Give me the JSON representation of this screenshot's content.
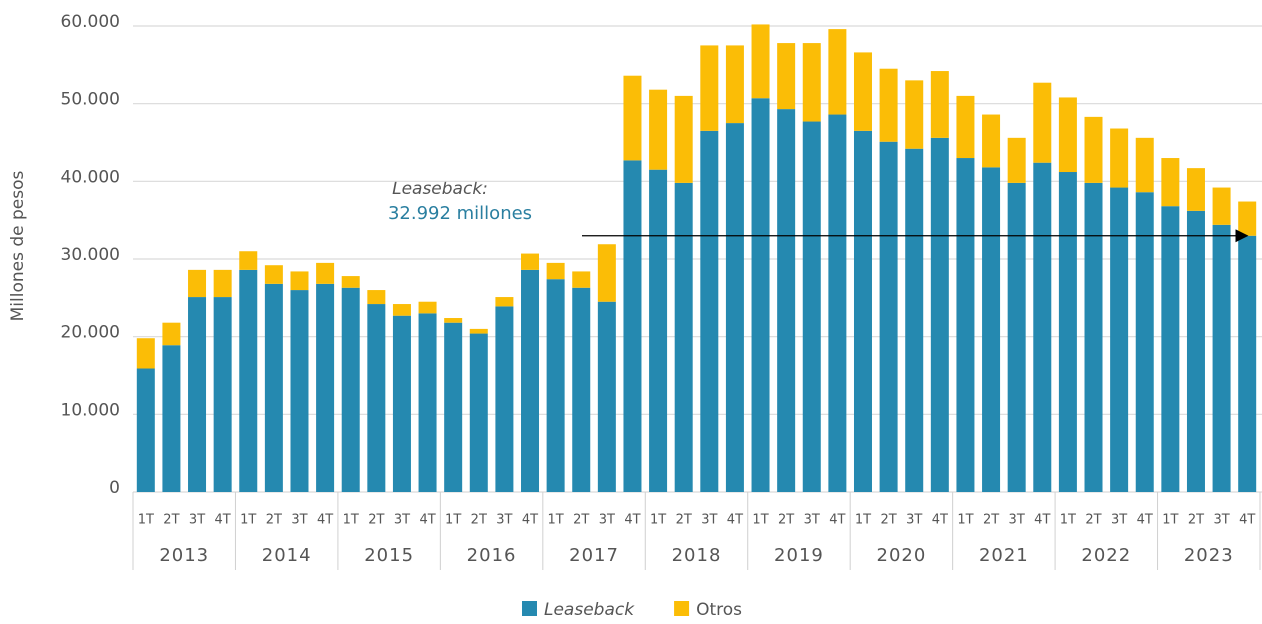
{
  "chart_data": {
    "type": "stacked_bar",
    "y_axis_label": "Millones de pesos",
    "categories": [
      "1T",
      "2T",
      "3T",
      "4T",
      "1T",
      "2T",
      "3T",
      "4T",
      "1T",
      "2T",
      "3T",
      "4T",
      "1T",
      "2T",
      "3T",
      "4T",
      "1T",
      "2T",
      "3T",
      "4T",
      "1T",
      "2T",
      "3T",
      "4T",
      "1T",
      "2T",
      "3T",
      "4T",
      "1T",
      "2T",
      "3T",
      "4T",
      "1T",
      "2T",
      "3T",
      "4T",
      "1T",
      "2T",
      "3T",
      "4T",
      "1T",
      "2T",
      "3T",
      "4T"
    ],
    "years": [
      "2013",
      "2014",
      "2015",
      "2016",
      "2017",
      "2018",
      "2019",
      "2020",
      "2021",
      "2022",
      "2023"
    ],
    "series": [
      {
        "name": "Leaseback",
        "color": "#2589b0",
        "values": [
          15900,
          18900,
          25100,
          25100,
          28600,
          26800,
          26000,
          26800,
          26300,
          24200,
          22700,
          23000,
          21800,
          20400,
          23900,
          28600,
          27400,
          26300,
          24500,
          42700,
          41500,
          39800,
          46500,
          47500,
          50700,
          49300,
          47700,
          48600,
          46500,
          45100,
          44200,
          45600,
          43000,
          41800,
          39800,
          42400,
          41200,
          39800,
          39200,
          38600,
          36800,
          36200,
          34400,
          32992
        ]
      },
      {
        "name": "Otros",
        "color": "#fbbd06",
        "values": [
          3900,
          2900,
          3500,
          3500,
          2400,
          2400,
          2400,
          2700,
          1500,
          1800,
          1500,
          1500,
          600,
          600,
          1200,
          2100,
          2100,
          2100,
          7400,
          10900,
          10300,
          11200,
          11000,
          10000,
          9500,
          8500,
          10100,
          11000,
          10100,
          9400,
          8800,
          8600,
          8000,
          6800,
          5800,
          10300,
          9600,
          8500,
          7600,
          7000,
          6200,
          5500,
          4800,
          4408
        ]
      }
    ],
    "annotation": {
      "title": "Leaseback:",
      "text": "32.992 millones"
    },
    "ylim": [
      0,
      60000
    ],
    "yticks": [
      0,
      {
        "value": 10000,
        "label": "10.000"
      },
      {
        "value": 20000,
        "label": "20.000"
      },
      {
        "value": 30000,
        "label": "30.000"
      },
      {
        "value": 40000,
        "label": "40.000"
      },
      {
        "value": 50000,
        "label": "50.000"
      },
      {
        "value": 60000,
        "label": "60.000"
      }
    ],
    "grid": true
  }
}
